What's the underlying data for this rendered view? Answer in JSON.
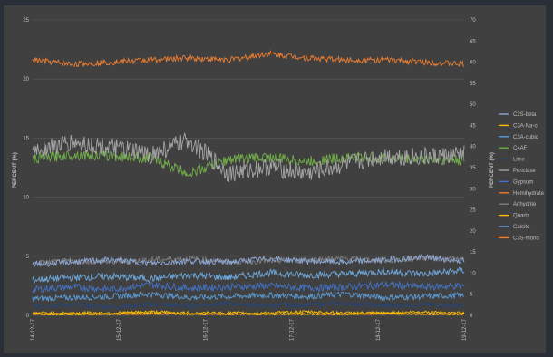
{
  "chart_data": {
    "type": "line",
    "title": "",
    "xlabel": "",
    "ylabel": "PERCENT (%)",
    "y2label": "PERCENT (%)",
    "ylim": [
      0,
      25
    ],
    "y2lim": [
      0,
      70
    ],
    "yticks": [
      "0",
      "5",
      "10",
      "15",
      "20",
      "25"
    ],
    "y2ticks": [
      "0",
      "5",
      "10",
      "15",
      "20",
      "25",
      "30",
      "35",
      "40",
      "45",
      "50",
      "55",
      "60",
      "65",
      "70"
    ],
    "xticks": [
      "14-12-17",
      "15-12-17",
      "16-12-17",
      "17-12-17",
      "18-12-17",
      "19-12-17"
    ],
    "grid": true,
    "legend_position": "right",
    "series": [
      {
        "name": "C2S-beta",
        "color": "#8ea9db",
        "axis": "left",
        "approx_values": [
          4.3,
          4.5,
          4.7,
          4.4,
          4.6,
          4.5,
          4.8,
          4.6,
          4.5,
          4.7,
          4.9,
          4.6
        ]
      },
      {
        "name": "C3A-Na-o",
        "color": "#ffc000",
        "axis": "left",
        "approx_values": [
          0.2,
          0.2,
          0.2,
          0.3,
          0.2,
          0.2,
          0.2,
          0.3,
          0.2,
          0.2,
          0.3,
          0.2
        ]
      },
      {
        "name": "C3A-cubic",
        "color": "#5b9bd5",
        "axis": "left",
        "approx_values": [
          1.4,
          1.5,
          1.6,
          1.8,
          1.5,
          1.6,
          1.7,
          1.6,
          1.8,
          1.5,
          1.6,
          1.7
        ]
      },
      {
        "name": "C4AF",
        "color": "#70ad47",
        "axis": "left",
        "approx_values": [
          13.2,
          13.6,
          13.5,
          13.3,
          12.0,
          13.2,
          13.4,
          13.0,
          13.4,
          13.3,
          13.2,
          13.1
        ]
      },
      {
        "name": "Lime",
        "color": "#264478",
        "axis": "left",
        "approx_values": [
          0.8,
          0.9,
          0.7,
          0.9,
          0.8,
          1.0,
          0.8,
          0.9,
          1.0,
          0.8,
          0.9,
          0.8
        ]
      },
      {
        "name": "Periclase",
        "color": "#a5a5a5",
        "axis": "left",
        "approx_values": [
          14.0,
          14.6,
          14.2,
          13.6,
          14.8,
          12.0,
          12.6,
          12.0,
          12.8,
          13.5,
          13.4,
          13.6
        ]
      },
      {
        "name": "Gypsum",
        "color": "#4472c4",
        "axis": "left",
        "approx_values": [
          2.2,
          2.4,
          2.2,
          2.6,
          2.3,
          2.4,
          2.5,
          2.3,
          2.4,
          2.6,
          2.4,
          2.5
        ]
      },
      {
        "name": "Hemihydrate",
        "color": "#ed7d31",
        "axis": "left",
        "approx_values": [
          0.1,
          0.1,
          0.1,
          0.1,
          0.1,
          0.1,
          0.1,
          0.1,
          0.1,
          0.1,
          0.1,
          0.1
        ]
      },
      {
        "name": "Anhydrite",
        "color": "#7f7f7f",
        "axis": "left",
        "approx_values": [
          4.4,
          4.6,
          4.5,
          4.7,
          4.8,
          4.5,
          4.6,
          4.7,
          4.8,
          4.6,
          4.9,
          4.7
        ]
      },
      {
        "name": "Quartz",
        "color": "#ffc000",
        "axis": "left",
        "approx_values": [
          0.1,
          0.1,
          0.1,
          0.2,
          0.1,
          0.1,
          0.1,
          0.1,
          0.1,
          0.2,
          0.1,
          0.1
        ]
      },
      {
        "name": "Calcite",
        "color": "#6fa8dc",
        "axis": "left",
        "approx_values": [
          3.0,
          3.2,
          3.3,
          3.1,
          3.4,
          3.2,
          3.6,
          3.4,
          3.5,
          3.7,
          3.5,
          3.8
        ]
      },
      {
        "name": "C3S-mono",
        "color": "#ed7d31",
        "axis": "right",
        "approx_values": [
          60.5,
          59.5,
          60.0,
          60.5,
          61.0,
          60.5,
          62.0,
          61.0,
          60.5,
          60.5,
          60.0,
          59.5
        ]
      }
    ]
  }
}
